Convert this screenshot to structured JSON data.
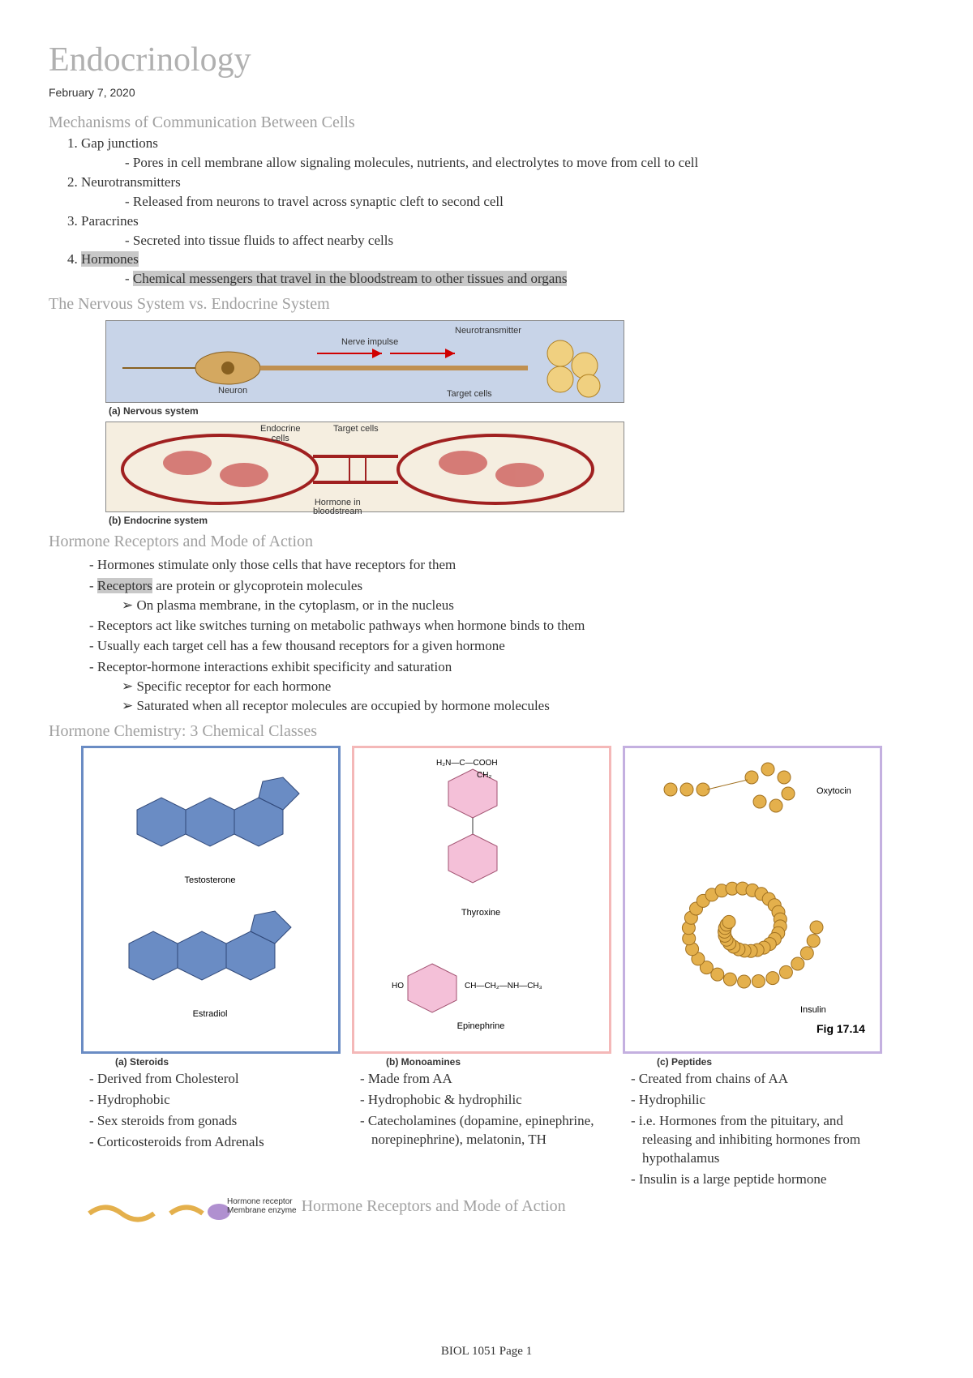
{
  "page": {
    "title": "Endocrinology",
    "date": "February 7, 2020",
    "footer": "BIOL 1051 Page 1"
  },
  "sections": {
    "mechanisms": {
      "heading": "Mechanisms of Communication Between Cells",
      "items": [
        {
          "label": "Gap junctions",
          "sub": "Pores in cell membrane allow signaling molecules, nutrients, and electrolytes to move from cell to cell"
        },
        {
          "label": "Neurotransmitters",
          "sub": "Released from neurons to travel across synaptic cleft to second cell"
        },
        {
          "label": "Paracrines",
          "sub": "Secreted into tissue fluids to affect nearby cells"
        },
        {
          "label": "Hormones",
          "highlight": true,
          "sub": "Chemical messengers that travel in the bloodstream to other tissues and organs",
          "sub_highlight": true
        }
      ]
    },
    "nervous_vs": {
      "heading": "The Nervous System vs. Endocrine System",
      "panel_a": {
        "caption": "(a) Nervous system",
        "bg": "#c8d4e8",
        "labels": {
          "neurotransmitter": "Neurotransmitter",
          "nerve_impulse": "Nerve impulse",
          "neuron": "Neuron",
          "target_cells": "Target cells"
        }
      },
      "panel_b": {
        "caption": "(b) Endocrine system",
        "bg": "#f5eee0",
        "labels": {
          "endocrine_cells": "Endocrine cells",
          "target_cells": "Target cells",
          "hormone": "Hormone in bloodstream"
        }
      }
    },
    "receptors": {
      "heading": "Hormone Receptors and Mode of Action",
      "bullets": [
        {
          "text": "Hormones stimulate only those cells that have receptors for them"
        },
        {
          "text_pre": "",
          "hl": "Receptors",
          "text_post": " are protein or glycoprotein molecules",
          "subs": [
            "On plasma membrane, in the cytoplasm, or in the nucleus"
          ]
        },
        {
          "text": "Receptors act like switches turning on metabolic pathways when hormone binds to them"
        },
        {
          "text": "Usually each target cell has a few thousand receptors for a given hormone"
        },
        {
          "text": "Receptor-hormone interactions exhibit specificity and saturation",
          "subs": [
            "Specific receptor for each hormone",
            "Saturated when all receptor molecules are occupied by hormone molecules"
          ]
        }
      ]
    },
    "chemistry": {
      "heading": "Hormone Chemistry: 3 Chemical Classes",
      "fig_ref": "Fig 17.14",
      "classes": [
        {
          "caption": "(a) Steroids",
          "border": "#6a8cc4",
          "fill": "#6a8cc4",
          "mols": [
            "Testosterone",
            "Estradiol"
          ],
          "bullets": [
            "Derived from Cholesterol",
            "Hydrophobic",
            "Sex steroids from gonads",
            "Corticosteroids from Adrenals"
          ]
        },
        {
          "caption": "(b) Monoamines",
          "border": "#f4b8b8",
          "fill": "#f4b8d0",
          "mols": [
            "Thyroxine",
            "Epinephrine"
          ],
          "bullets": [
            "Made from AA",
            "Hydrophobic & hydrophilic",
            "Catecholamines (dopamine, epinephrine, norepinephrine), melatonin, TH"
          ]
        },
        {
          "caption": "(c) Peptides",
          "border": "#c4b0e0",
          "fill": "#e4b04c",
          "mols": [
            "Oxytocin",
            "Insulin"
          ],
          "bullets": [
            "Created from chains of AA",
            "Hydrophilic",
            "i.e. Hormones from the pituitary, and releasing and inhibiting hormones from hypothalamus",
            "Insulin is a large peptide hormone"
          ]
        }
      ]
    },
    "partial": {
      "heading": "Hormone Receptors and Mode of Action",
      "labels": {
        "hr": "Hormone receptor",
        "me": "Membrane enzyme"
      }
    }
  }
}
